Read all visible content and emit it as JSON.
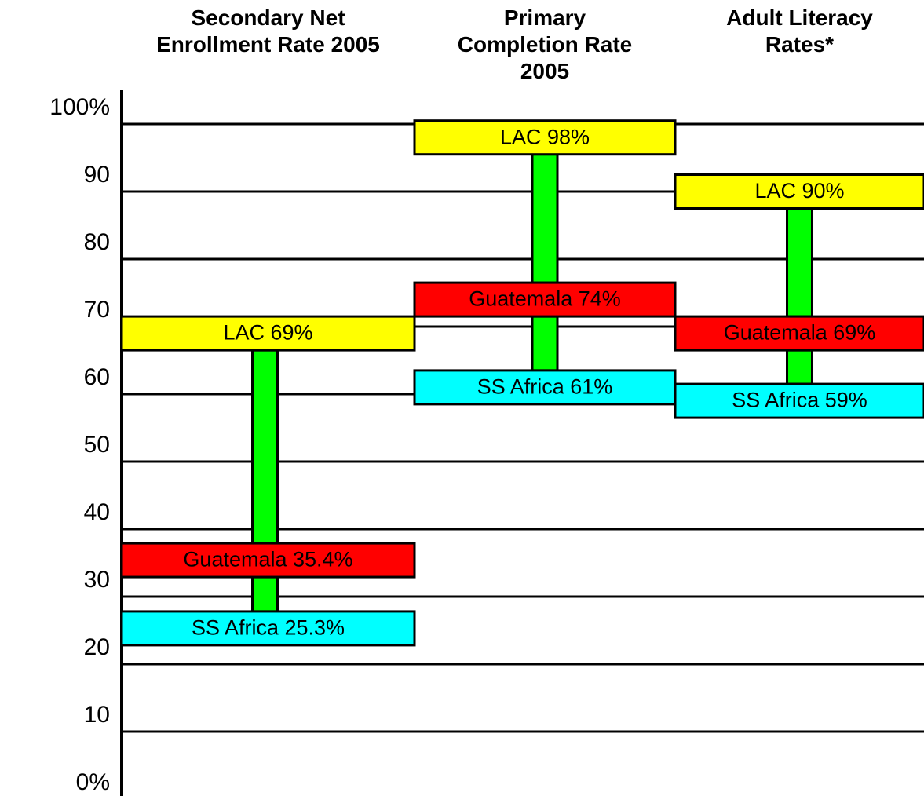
{
  "chart_data": {
    "type": "range-bar",
    "categories": [
      "Secondary Net Enrollment Rate 2005",
      "Primary Completion Rate 2005",
      "Adult Literacy Rates*"
    ],
    "series": [
      {
        "color": "#ffff00",
        "values": [
          69,
          98,
          90
        ],
        "value_labels": [
          "LAC 69%",
          "LAC 98%",
          "LAC 90%"
        ]
      },
      {
        "color": "#ff0000",
        "values": [
          35.4,
          74,
          69
        ],
        "value_labels": [
          "Guatemala 35.4%",
          "Guatemala 74%",
          "Guatemala 69%"
        ]
      },
      {
        "color": "#00ffff",
        "values": [
          25.3,
          61,
          59
        ],
        "value_labels": [
          "SS Africa 25.3%",
          "SS Africa 61%",
          "SS Africa 59%"
        ]
      }
    ],
    "connector_color": "#00ff00",
    "ylim": [
      0,
      100
    ],
    "yticks": [
      {
        "value": 0,
        "label": "0%"
      },
      10,
      20,
      30,
      40,
      50,
      60,
      70,
      80,
      90,
      {
        "value": 100,
        "label": "100%"
      }
    ],
    "grid": true
  }
}
